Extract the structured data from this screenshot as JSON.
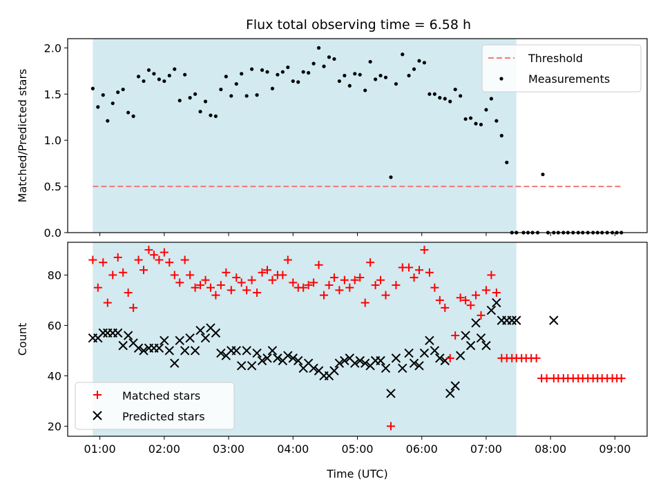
{
  "figure": {
    "title": "Flux total observing time = 6.58 h"
  },
  "chart_data": [
    {
      "type": "scatter",
      "ylabel": "Matched/Predicted stars",
      "ylim": [
        0,
        2.1
      ],
      "xlim": [
        0.5,
        9.5
      ],
      "yticks": [
        0.0,
        0.5,
        1.0,
        1.5,
        2.0
      ],
      "ytick_labels": [
        "0.0",
        "0.5",
        "1.0",
        "1.5",
        "2.0"
      ],
      "observing_window": [
        0.89,
        7.47
      ],
      "observing_window_color": "#d3eaf0",
      "legend_position": "top-right",
      "threshold": {
        "name": "Threshold",
        "y": 0.5,
        "x_range": [
          0.89,
          9.1
        ],
        "color": "#f07878"
      },
      "measurements": {
        "name": "Measurements",
        "color": "#000000",
        "x": [
          0.89,
          0.97,
          1.05,
          1.12,
          1.2,
          1.28,
          1.36,
          1.44,
          1.52,
          1.6,
          1.68,
          1.76,
          1.84,
          1.92,
          2.0,
          2.08,
          2.16,
          2.24,
          2.32,
          2.4,
          2.48,
          2.56,
          2.64,
          2.72,
          2.8,
          2.88,
          2.96,
          3.04,
          3.12,
          3.2,
          3.28,
          3.36,
          3.44,
          3.52,
          3.6,
          3.68,
          3.76,
          3.84,
          3.92,
          4.0,
          4.08,
          4.16,
          4.24,
          4.32,
          4.4,
          4.48,
          4.56,
          4.64,
          4.72,
          4.8,
          4.88,
          4.96,
          5.04,
          5.12,
          5.2,
          5.28,
          5.36,
          5.44,
          5.52,
          5.6,
          5.7,
          5.8,
          5.88,
          5.96,
          6.04,
          6.12,
          6.2,
          6.28,
          6.36,
          6.44,
          6.52,
          6.6,
          6.68,
          6.76,
          6.84,
          6.92,
          7.0,
          7.08,
          7.16,
          7.24,
          7.32,
          7.4,
          7.47,
          7.58,
          7.65,
          7.72,
          7.8,
          7.88,
          7.96,
          8.05,
          8.12,
          8.2,
          8.27,
          8.35,
          8.43,
          8.5,
          8.58,
          8.66,
          8.73,
          8.8,
          8.88,
          8.96,
          9.03,
          9.1
        ],
        "y": [
          1.56,
          1.36,
          1.49,
          1.21,
          1.4,
          1.52,
          1.55,
          1.3,
          1.26,
          1.69,
          1.64,
          1.76,
          1.72,
          1.66,
          1.64,
          1.7,
          1.77,
          1.43,
          1.71,
          1.46,
          1.5,
          1.31,
          1.42,
          1.27,
          1.26,
          1.55,
          1.69,
          1.48,
          1.61,
          1.72,
          1.48,
          1.77,
          1.49,
          1.76,
          1.74,
          1.56,
          1.71,
          1.74,
          1.79,
          1.64,
          1.63,
          1.74,
          1.73,
          1.83,
          2.0,
          1.8,
          1.9,
          1.88,
          1.64,
          1.7,
          1.59,
          1.72,
          1.71,
          1.54,
          1.85,
          1.66,
          1.7,
          1.68,
          0.6,
          1.61,
          1.93,
          1.7,
          1.77,
          1.86,
          1.84,
          1.5,
          1.5,
          1.46,
          1.45,
          1.42,
          1.55,
          1.48,
          1.23,
          1.24,
          1.18,
          1.17,
          1.33,
          1.45,
          1.21,
          1.05,
          0.76,
          0.0,
          0.0,
          0.0,
          0.0,
          0.0,
          0.0,
          0.63,
          0.0,
          0.0,
          0.0,
          0.0,
          0.0,
          0.0,
          0.0,
          0.0,
          0.0,
          0.0,
          0.0,
          0.0,
          0.0,
          0.0,
          0.0,
          0.0
        ]
      }
    },
    {
      "type": "scatter",
      "xlabel": "Time (UTC)",
      "ylabel": "Count",
      "ylim": [
        16,
        93
      ],
      "xlim": [
        0.5,
        9.5
      ],
      "yticks": [
        20,
        40,
        60,
        80
      ],
      "ytick_labels": [
        "20",
        "40",
        "60",
        "80"
      ],
      "xticks": [
        1,
        2,
        3,
        4,
        5,
        6,
        7,
        8,
        9
      ],
      "xtick_labels": [
        "01:00",
        "02:00",
        "03:00",
        "04:00",
        "05:00",
        "06:00",
        "07:00",
        "08:00",
        "09:00"
      ],
      "observing_window": [
        0.89,
        7.47
      ],
      "observing_window_color": "#d3eaf0",
      "legend_position": "bottom-left",
      "series": [
        {
          "name": "Matched stars",
          "marker": "+",
          "color": "#ff0000",
          "x": [
            0.89,
            0.97,
            1.05,
            1.12,
            1.2,
            1.28,
            1.36,
            1.44,
            1.52,
            1.6,
            1.68,
            1.76,
            1.84,
            1.92,
            2.0,
            2.08,
            2.16,
            2.24,
            2.32,
            2.4,
            2.48,
            2.56,
            2.64,
            2.72,
            2.8,
            2.88,
            2.96,
            3.04,
            3.12,
            3.2,
            3.28,
            3.36,
            3.44,
            3.52,
            3.6,
            3.68,
            3.76,
            3.84,
            3.92,
            4.0,
            4.08,
            4.16,
            4.24,
            4.32,
            4.4,
            4.48,
            4.56,
            4.64,
            4.72,
            4.8,
            4.88,
            4.96,
            5.04,
            5.12,
            5.2,
            5.28,
            5.36,
            5.44,
            5.52,
            5.6,
            5.7,
            5.8,
            5.88,
            5.96,
            6.04,
            6.12,
            6.2,
            6.28,
            6.36,
            6.44,
            6.52,
            6.6,
            6.68,
            6.76,
            6.84,
            6.92,
            7.0,
            7.08,
            7.16,
            7.24,
            7.32,
            7.4,
            7.47,
            7.55,
            7.62,
            7.7,
            7.78,
            7.86,
            7.94,
            8.05,
            8.12,
            8.2,
            8.27,
            8.35,
            8.43,
            8.5,
            8.58,
            8.66,
            8.73,
            8.8,
            8.88,
            8.96,
            9.03,
            9.1
          ],
          "y": [
            86,
            75,
            85,
            69,
            80,
            87,
            81,
            73,
            67,
            86,
            82,
            90,
            88,
            86,
            89,
            85,
            80,
            77,
            86,
            80,
            75,
            76,
            78,
            75,
            72,
            76,
            81,
            74,
            79,
            77,
            74,
            78,
            73,
            81,
            82,
            78,
            80,
            80,
            86,
            77,
            75,
            75,
            76,
            77,
            84,
            72,
            76,
            79,
            74,
            78,
            75,
            78,
            79,
            69,
            85,
            76,
            78,
            72,
            20,
            76,
            83,
            83,
            79,
            82,
            90,
            81,
            75,
            70,
            67,
            47,
            56,
            71,
            70,
            68,
            72,
            64,
            74,
            80,
            73,
            47,
            47,
            47,
            47,
            47,
            47,
            47,
            47,
            39,
            39,
            39,
            39,
            39,
            39,
            39,
            39,
            39,
            39,
            39,
            39,
            39,
            39,
            39,
            39,
            39
          ]
        },
        {
          "name": "Predicted stars",
          "marker": "x",
          "color": "#000000",
          "x": [
            0.89,
            0.97,
            1.05,
            1.12,
            1.2,
            1.28,
            1.36,
            1.44,
            1.52,
            1.6,
            1.68,
            1.76,
            1.84,
            1.92,
            2.0,
            2.08,
            2.16,
            2.24,
            2.32,
            2.4,
            2.48,
            2.56,
            2.64,
            2.72,
            2.8,
            2.88,
            2.96,
            3.04,
            3.12,
            3.2,
            3.28,
            3.36,
            3.44,
            3.52,
            3.6,
            3.68,
            3.76,
            3.84,
            3.92,
            4.0,
            4.08,
            4.16,
            4.24,
            4.32,
            4.4,
            4.48,
            4.56,
            4.64,
            4.72,
            4.8,
            4.88,
            4.96,
            5.04,
            5.12,
            5.2,
            5.28,
            5.36,
            5.44,
            5.52,
            5.6,
            5.7,
            5.8,
            5.88,
            5.96,
            6.04,
            6.12,
            6.2,
            6.28,
            6.36,
            6.44,
            6.52,
            6.6,
            6.68,
            6.76,
            6.84,
            6.92,
            7.0,
            7.08,
            7.16,
            7.24,
            7.32,
            7.4,
            7.47,
            8.05
          ],
          "y": [
            55,
            55,
            57,
            57,
            57,
            57,
            52,
            56,
            53,
            51,
            50,
            51,
            51,
            51,
            54,
            50,
            45,
            54,
            50,
            55,
            50,
            58,
            55,
            59,
            57,
            49,
            48,
            50,
            50,
            44,
            50,
            44,
            49,
            46,
            47,
            50,
            47,
            46,
            48,
            47,
            46,
            43,
            45,
            43,
            42,
            40,
            40,
            42,
            45,
            46,
            47,
            45,
            46,
            45,
            44,
            46,
            46,
            43,
            33,
            47,
            43,
            49,
            45,
            44,
            49,
            54,
            50,
            47,
            46,
            33,
            36,
            48,
            56,
            52,
            61,
            55,
            52,
            66,
            69,
            62,
            62,
            62,
            62,
            62
          ]
        }
      ]
    }
  ]
}
